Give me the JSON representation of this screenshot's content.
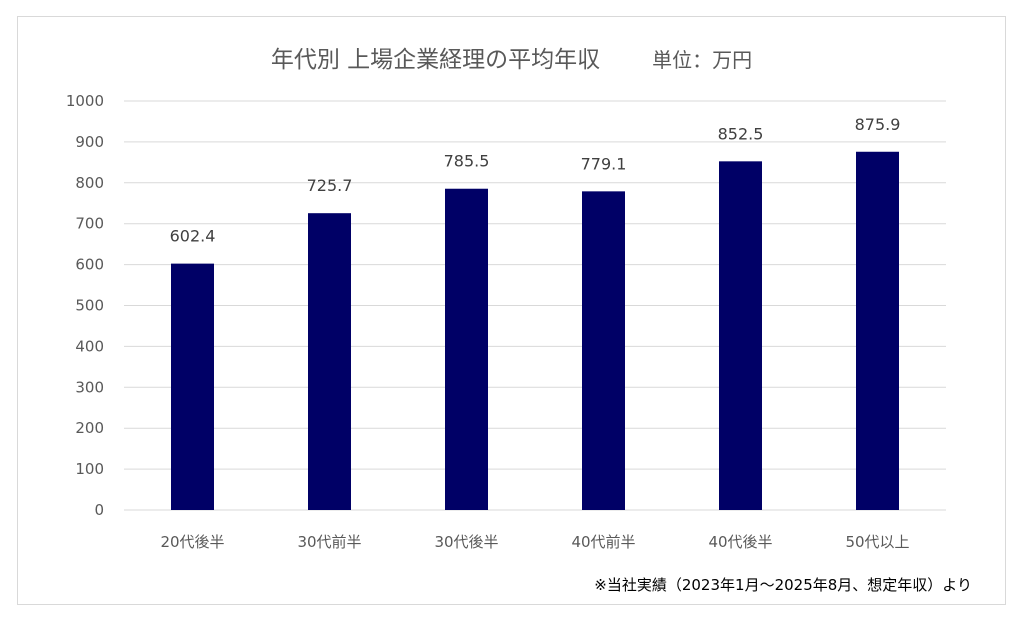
{
  "colors": {
    "bar": "#000066",
    "grid": "#d9d9d9",
    "text": "#595959"
  },
  "header": {
    "title": "年代別 上場企業経理の平均年収",
    "unit": "単位：万円"
  },
  "footnote": "※当社実績（2023年1月～2025年8月、想定年収）より",
  "chart_data": {
    "type": "bar",
    "title": "年代別 上場企業経理の平均年収",
    "subtitle": "単位：万円",
    "categories": [
      "20代後半",
      "30代前半",
      "30代後半",
      "40代前半",
      "40代後半",
      "50代以上"
    ],
    "values": [
      602.4,
      725.7,
      785.5,
      779.1,
      852.5,
      875.9
    ],
    "data_labels": [
      "602.4",
      "725.7",
      "785.5",
      "779.1",
      "852.5",
      "875.9"
    ],
    "ylim": [
      0,
      1000
    ],
    "yticks": [
      0,
      100,
      200,
      300,
      400,
      500,
      600,
      700,
      800,
      900,
      1000
    ],
    "grid": true,
    "legend": "none"
  }
}
